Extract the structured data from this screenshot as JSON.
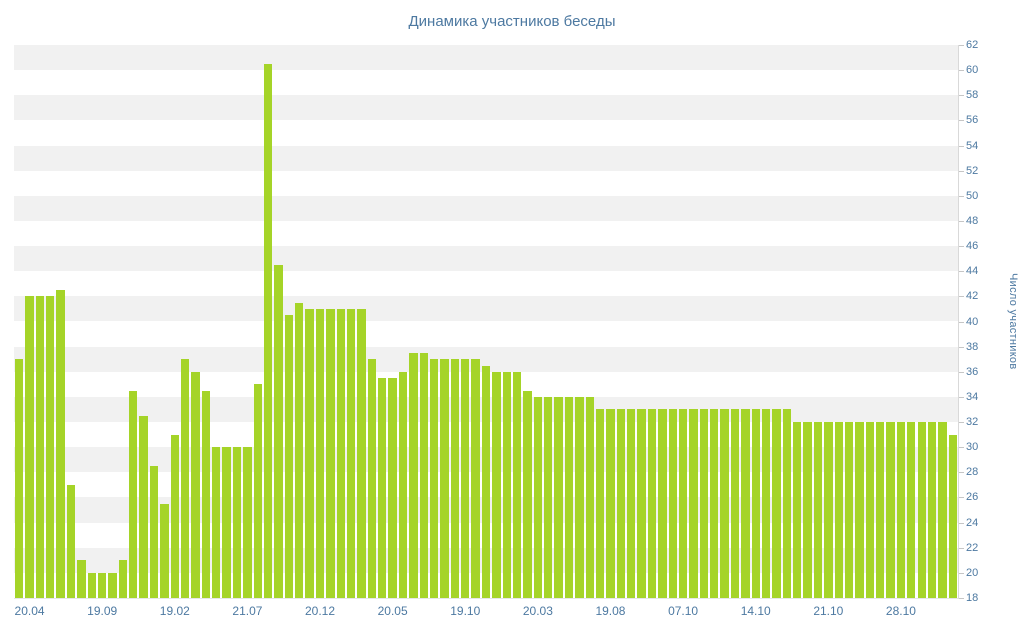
{
  "chart_data": {
    "type": "bar",
    "title": "Динамика участников беседы",
    "ylabel": "Число участников",
    "xlabel": "",
    "ylim": [
      18,
      62
    ],
    "ytick_step": 2,
    "yticks": [
      18,
      20,
      22,
      24,
      26,
      28,
      30,
      32,
      34,
      36,
      38,
      40,
      42,
      44,
      46,
      48,
      50,
      52,
      54,
      56,
      58,
      60,
      62
    ],
    "grid": "horizontal-striped-bands",
    "legend_position": "none",
    "x_tick_labels": [
      {
        "text": "20.04",
        "bar_index": 1
      },
      {
        "text": "19.09",
        "bar_index": 8
      },
      {
        "text": "19.02",
        "bar_index": 15
      },
      {
        "text": "21.07",
        "bar_index": 22
      },
      {
        "text": "20.12",
        "bar_index": 29
      },
      {
        "text": "20.05",
        "bar_index": 36
      },
      {
        "text": "19.10",
        "bar_index": 43
      },
      {
        "text": "20.03",
        "bar_index": 50
      },
      {
        "text": "19.08",
        "bar_index": 57
      },
      {
        "text": "07.10",
        "bar_index": 64
      },
      {
        "text": "14.10",
        "bar_index": 71
      },
      {
        "text": "21.10",
        "bar_index": 78
      },
      {
        "text": "28.10",
        "bar_index": 85
      }
    ],
    "values": [
      37,
      42,
      42,
      42,
      42.5,
      27,
      21,
      20,
      20,
      20,
      21,
      34.5,
      32.5,
      28.5,
      25.5,
      31,
      37,
      36,
      34.5,
      30,
      30,
      30,
      30,
      35,
      60.5,
      44.5,
      40.5,
      41.5,
      41,
      41,
      41,
      41,
      41,
      41,
      37,
      35.5,
      35.5,
      36,
      37.5,
      37.5,
      37,
      37,
      37,
      37,
      37,
      36.5,
      36,
      36,
      36,
      34.5,
      34,
      34,
      34,
      34,
      34,
      34,
      33,
      33,
      33,
      33,
      33,
      33,
      33,
      33,
      33,
      33,
      33,
      33,
      33,
      33,
      33,
      33,
      33,
      33,
      33,
      32,
      32,
      32,
      32,
      32,
      32,
      32,
      32,
      32,
      32,
      32,
      32,
      32,
      32,
      32,
      31
    ],
    "colors": {
      "bar": "#a5d428",
      "stripe": "#f1f1f1",
      "text": "#4d79a1",
      "axis_line": "#d9d9d9"
    }
  }
}
